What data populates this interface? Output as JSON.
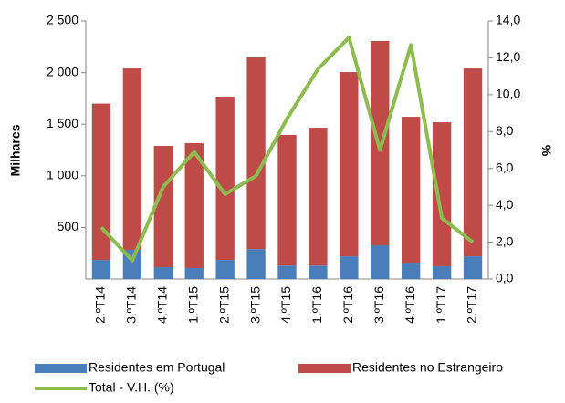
{
  "chart_data": {
    "type": "bar",
    "categories": [
      "2.ºT14",
      "3.ºT14",
      "4.ºT14",
      "1.ºT15",
      "2.ºT15",
      "3.ºT15",
      "4.ºT15",
      "1.ºT16",
      "2.ºT16",
      "3.ºT16",
      "4.ºT16",
      "1.ºT17",
      "2.ºT17"
    ],
    "stacked": true,
    "series": [
      {
        "name": "Residentes em Portugal",
        "color": "#4a7ebb",
        "values": [
          185,
          283,
          115,
          106,
          185,
          290,
          130,
          130,
          220,
          327,
          150,
          124,
          220
        ]
      },
      {
        "name": "Residentes no Estrangeiro",
        "color": "#be4b48",
        "values": [
          1515,
          1757,
          1175,
          1210,
          1582,
          1865,
          1266,
          1336,
          1785,
          1979,
          1422,
          1395,
          1820
        ]
      },
      {
        "name": "Total - V.H. (%)",
        "color": "#8cbb4f",
        "type": "line",
        "axis": "y2",
        "values": [
          2.8,
          1.0,
          5.0,
          6.9,
          4.6,
          5.6,
          8.7,
          11.4,
          13.1,
          7.0,
          12.7,
          3.3,
          2.0
        ]
      }
    ],
    "ylabel": "Milhares",
    "y2label": "%",
    "ylim": [
      0,
      2500
    ],
    "yticks": [
      {
        "value": 500,
        "label": "500"
      },
      {
        "value": 1000,
        "label": "1 000"
      },
      {
        "value": 1500,
        "label": "1 500"
      },
      {
        "value": 2000,
        "label": "2 000"
      },
      {
        "value": 2500,
        "label": "2 500"
      }
    ],
    "y2lim": [
      0,
      14
    ],
    "y2ticks": [
      {
        "value": 0,
        "label": "0,0"
      },
      {
        "value": 2,
        "label": "2,0"
      },
      {
        "value": 4,
        "label": "4,0"
      },
      {
        "value": 6,
        "label": "6,0"
      },
      {
        "value": 8,
        "label": "8,0"
      },
      {
        "value": 10,
        "label": "10,0"
      },
      {
        "value": 12,
        "label": "12,0"
      },
      {
        "value": 14,
        "label": "14,0"
      }
    ],
    "grid": false,
    "legend": "bottom"
  }
}
